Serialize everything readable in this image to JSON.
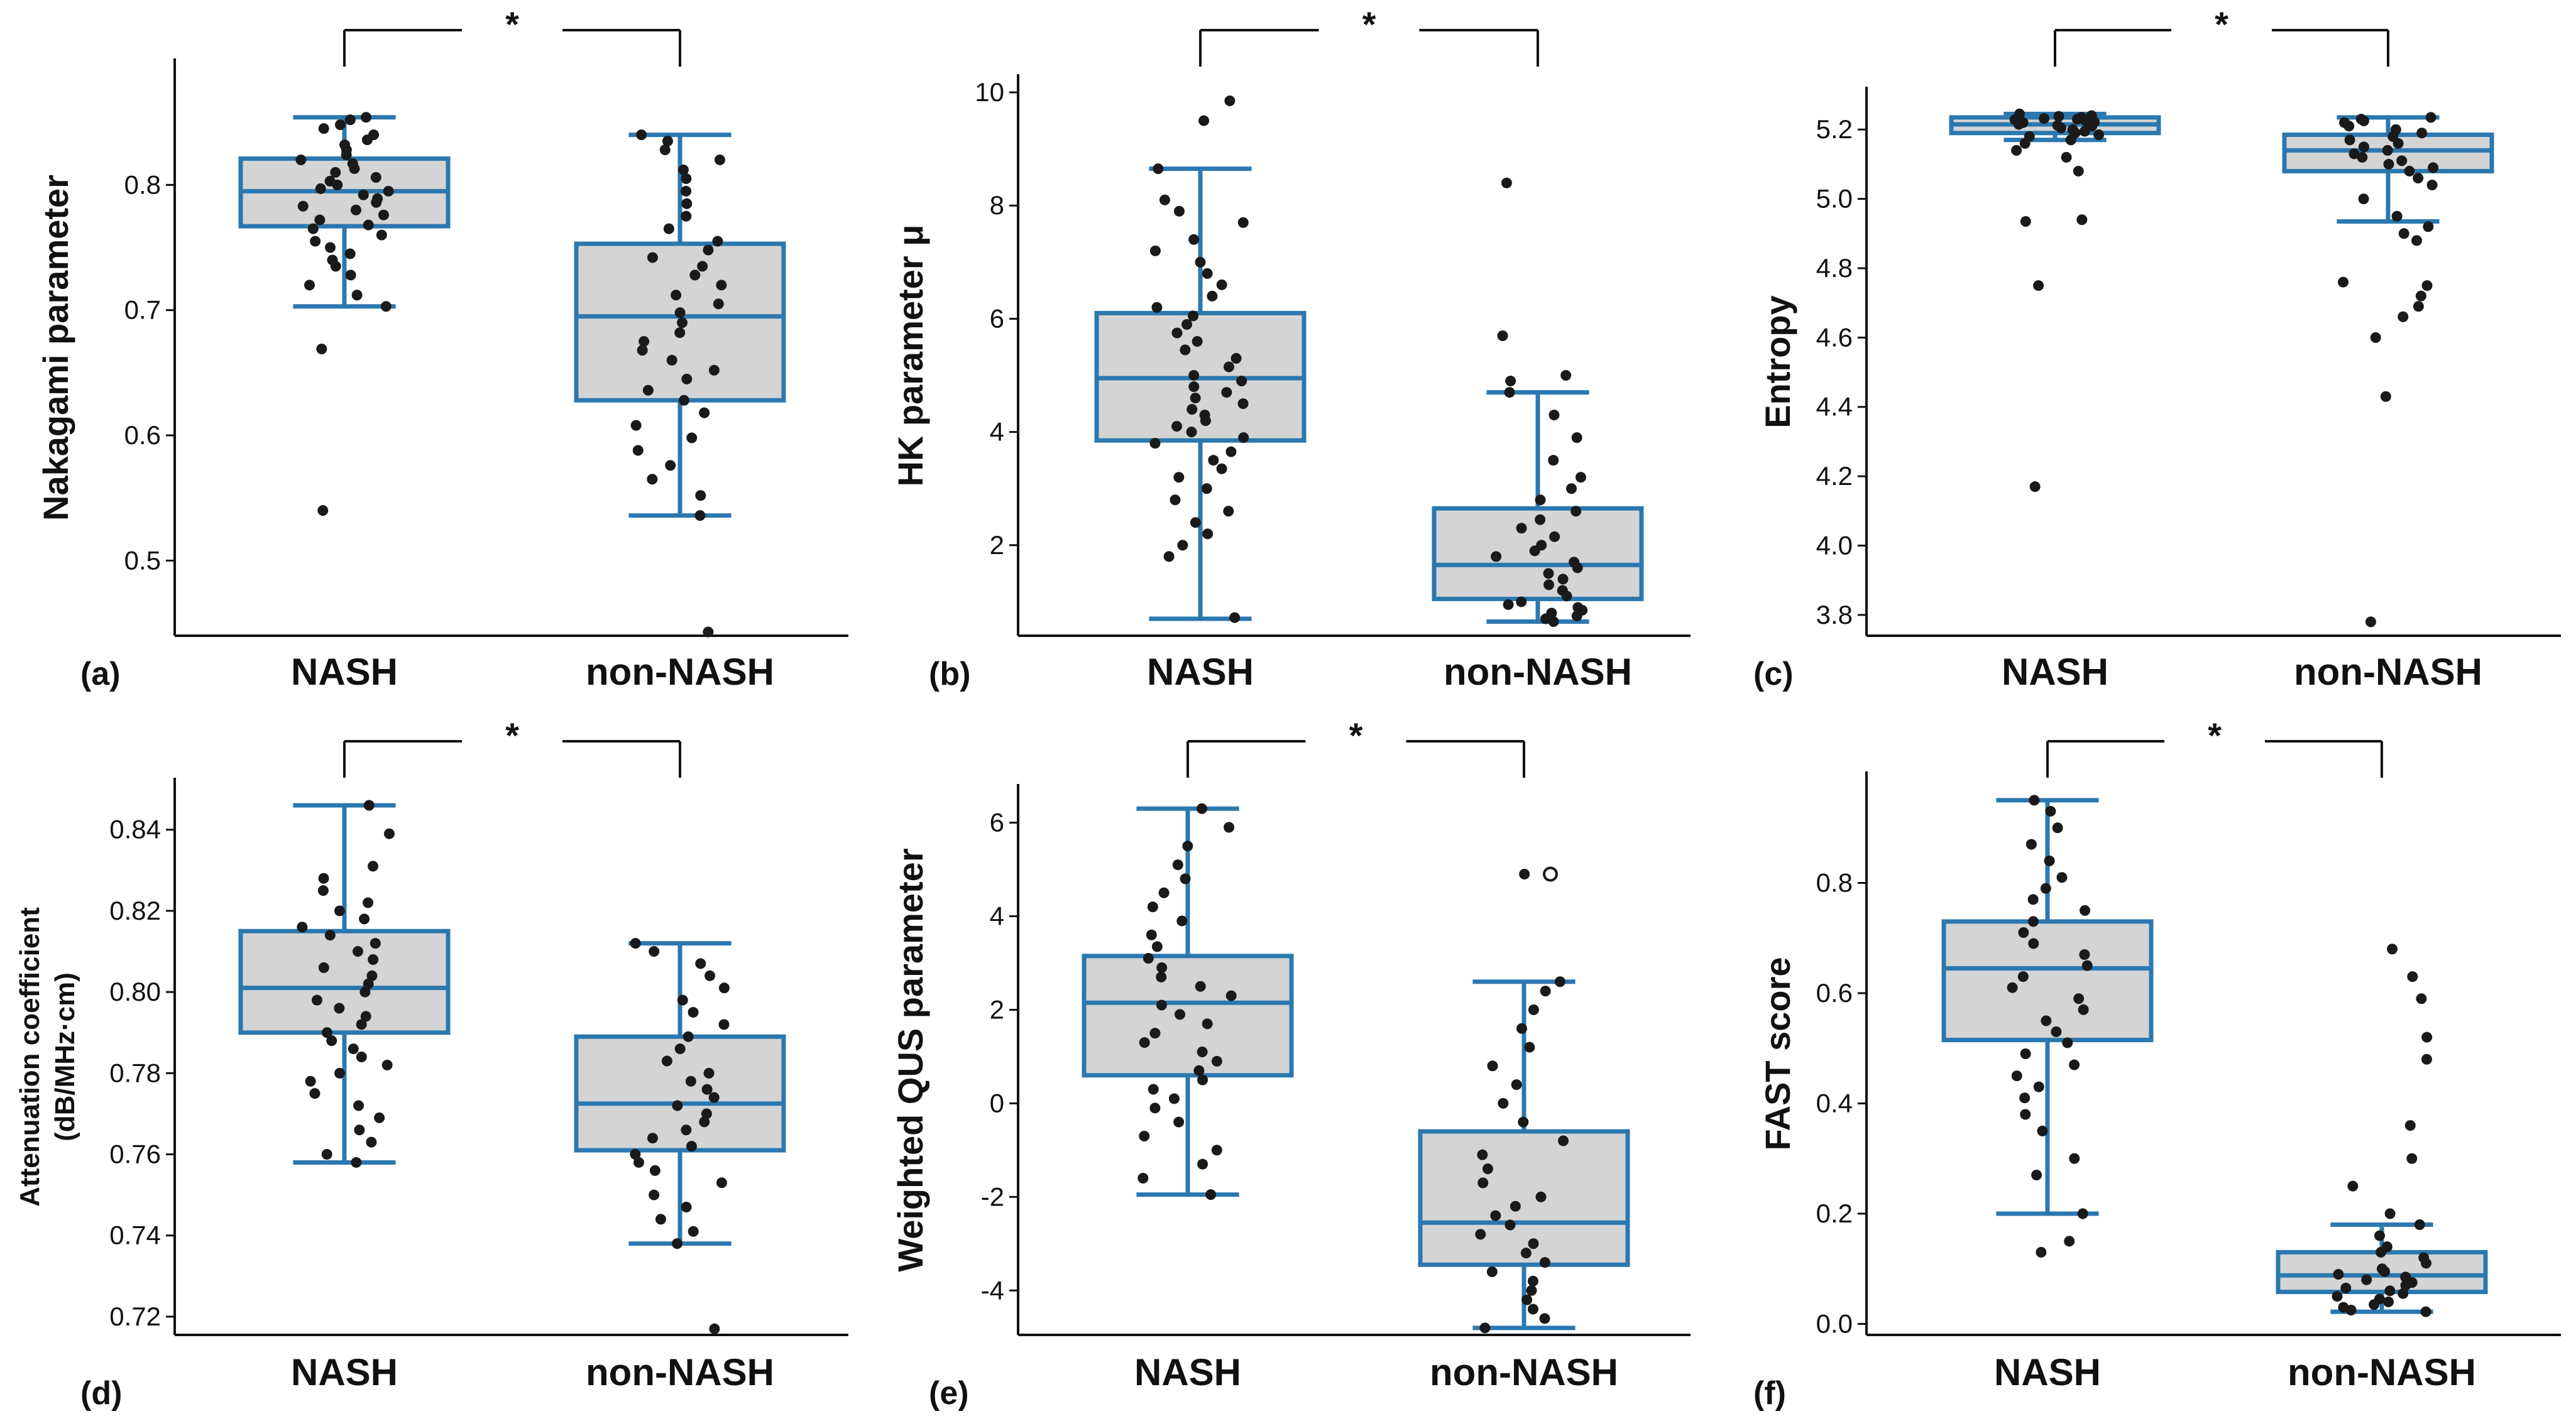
{
  "figure_colors": {
    "box_edge": "#2b78b0",
    "box_fill": "#d4d4d4",
    "point": "#1a1a1a",
    "axis": "#111111"
  },
  "chart_data": [
    {
      "type": "box",
      "panel": "(a)",
      "categories": [
        "NASH",
        "non-NASH"
      ],
      "ylabel": "Nakagami parameter",
      "ylim": [
        0.44,
        0.9
      ],
      "yticks": [
        0.5,
        0.6,
        0.7,
        0.8
      ],
      "tick_decimals": 1,
      "significance": "*",
      "boxes": [
        {
          "name": "NASH",
          "q1": 0.767,
          "median": 0.795,
          "q3": 0.821,
          "whisker_low": 0.703,
          "whisker_high": 0.854
        },
        {
          "name": "non-NASH",
          "q1": 0.628,
          "median": 0.695,
          "q3": 0.753,
          "whisker_low": 0.536,
          "whisker_high": 0.84
        }
      ],
      "points": [
        [
          0.854,
          0.852,
          0.848,
          0.845,
          0.84,
          0.836,
          0.832,
          0.828,
          0.824,
          0.82,
          0.817,
          0.813,
          0.81,
          0.806,
          0.803,
          0.8,
          0.797,
          0.795,
          0.792,
          0.789,
          0.786,
          0.783,
          0.78,
          0.776,
          0.772,
          0.768,
          0.765,
          0.76,
          0.755,
          0.75,
          0.745,
          0.74,
          0.735,
          0.728,
          0.72,
          0.712,
          0.703,
          0.669,
          0.54
        ],
        [
          0.84,
          0.835,
          0.828,
          0.82,
          0.812,
          0.805,
          0.795,
          0.785,
          0.775,
          0.765,
          0.755,
          0.748,
          0.742,
          0.735,
          0.728,
          0.72,
          0.712,
          0.705,
          0.698,
          0.69,
          0.682,
          0.675,
          0.668,
          0.66,
          0.652,
          0.645,
          0.636,
          0.628,
          0.618,
          0.608,
          0.598,
          0.588,
          0.576,
          0.565,
          0.552,
          0.536,
          0.443
        ]
      ]
    },
    {
      "type": "box",
      "panel": "(b)",
      "categories": [
        "NASH",
        "non-NASH"
      ],
      "ylabel": "HK parameter μ",
      "ylim": [
        0.4,
        10.3
      ],
      "yticks": [
        2,
        4,
        6,
        8,
        10
      ],
      "tick_decimals": 0,
      "significance": "*",
      "boxes": [
        {
          "name": "NASH",
          "q1": 3.85,
          "median": 4.95,
          "q3": 6.1,
          "whisker_low": 0.7,
          "whisker_high": 8.65
        },
        {
          "name": "non-NASH",
          "q1": 1.05,
          "median": 1.65,
          "q3": 2.65,
          "whisker_low": 0.65,
          "whisker_high": 4.7
        }
      ],
      "points": [
        [
          9.85,
          9.5,
          8.65,
          8.1,
          7.9,
          7.7,
          7.4,
          7.2,
          7.0,
          6.8,
          6.6,
          6.4,
          6.2,
          6.05,
          5.9,
          5.75,
          5.6,
          5.45,
          5.3,
          5.15,
          5.0,
          4.9,
          4.8,
          4.7,
          4.6,
          4.5,
          4.4,
          4.3,
          4.2,
          4.1,
          4.0,
          3.9,
          3.8,
          3.65,
          3.5,
          3.35,
          3.2,
          3.0,
          2.8,
          2.6,
          2.4,
          2.2,
          2.0,
          1.8,
          0.72
        ],
        [
          8.4,
          5.7,
          5.0,
          4.9,
          4.7,
          4.3,
          3.9,
          3.5,
          3.2,
          3.0,
          2.8,
          2.6,
          2.45,
          2.3,
          2.15,
          2.0,
          1.9,
          1.8,
          1.7,
          1.6,
          1.5,
          1.4,
          1.3,
          1.2,
          1.1,
          1.0,
          0.95,
          0.9,
          0.85,
          0.8,
          0.75,
          0.7,
          0.65
        ]
      ]
    },
    {
      "type": "box",
      "panel": "(c)",
      "categories": [
        "NASH",
        "non-NASH"
      ],
      "ylabel": "Entropy",
      "ylim": [
        3.74,
        5.32
      ],
      "yticks": [
        3.8,
        4.0,
        4.2,
        4.4,
        4.6,
        4.8,
        5.0,
        5.2
      ],
      "tick_decimals": 1,
      "significance": "*",
      "boxes": [
        {
          "name": "NASH",
          "q1": 5.19,
          "median": 5.215,
          "q3": 5.235,
          "whisker_low": 5.17,
          "whisker_high": 5.245
        },
        {
          "name": "non-NASH",
          "q1": 5.08,
          "median": 5.14,
          "q3": 5.185,
          "whisker_low": 4.935,
          "whisker_high": 5.235
        }
      ],
      "points": [
        [
          5.245,
          5.24,
          5.238,
          5.235,
          5.232,
          5.23,
          5.228,
          5.225,
          5.222,
          5.22,
          5.218,
          5.215,
          5.212,
          5.21,
          5.205,
          5.2,
          5.195,
          5.19,
          5.185,
          5.18,
          5.17,
          5.16,
          5.14,
          5.12,
          5.08,
          4.94,
          4.935,
          4.75,
          4.17
        ],
        [
          5.235,
          5.23,
          5.225,
          5.22,
          5.21,
          5.2,
          5.19,
          5.18,
          5.17,
          5.16,
          5.15,
          5.14,
          5.13,
          5.12,
          5.11,
          5.1,
          5.09,
          5.08,
          5.06,
          5.04,
          5.0,
          4.95,
          4.92,
          4.9,
          4.88,
          4.76,
          4.75,
          4.72,
          4.69,
          4.66,
          4.6,
          4.43,
          3.78
        ]
      ]
    },
    {
      "type": "box",
      "panel": "(d)",
      "categories": [
        "NASH",
        "non-NASH"
      ],
      "ylabel": "Attenuation  coefficient",
      "ylabel2": "(dB/MHz·cm)",
      "ylim": [
        0.7155,
        0.8525
      ],
      "yticks": [
        0.72,
        0.74,
        0.76,
        0.78,
        0.8,
        0.82,
        0.84
      ],
      "tick_decimals": 2,
      "significance": "*",
      "boxes": [
        {
          "name": "NASH",
          "q1": 0.79,
          "median": 0.801,
          "q3": 0.815,
          "whisker_low": 0.758,
          "whisker_high": 0.846
        },
        {
          "name": "non-NASH",
          "q1": 0.761,
          "median": 0.7725,
          "q3": 0.789,
          "whisker_low": 0.738,
          "whisker_high": 0.812
        }
      ],
      "points": [
        [
          0.846,
          0.839,
          0.831,
          0.828,
          0.825,
          0.822,
          0.82,
          0.818,
          0.816,
          0.814,
          0.812,
          0.81,
          0.808,
          0.806,
          0.804,
          0.802,
          0.8,
          0.798,
          0.796,
          0.794,
          0.792,
          0.79,
          0.788,
          0.786,
          0.784,
          0.782,
          0.78,
          0.778,
          0.775,
          0.772,
          0.769,
          0.766,
          0.763,
          0.76,
          0.758
        ],
        [
          0.812,
          0.81,
          0.807,
          0.804,
          0.801,
          0.798,
          0.795,
          0.792,
          0.789,
          0.786,
          0.783,
          0.78,
          0.778,
          0.776,
          0.774,
          0.772,
          0.77,
          0.768,
          0.766,
          0.764,
          0.762,
          0.76,
          0.758,
          0.756,
          0.753,
          0.75,
          0.747,
          0.744,
          0.741,
          0.738,
          0.717
        ]
      ]
    },
    {
      "type": "box",
      "panel": "(e)",
      "categories": [
        "NASH",
        "non-NASH"
      ],
      "ylabel": "Weighted QUS parameter",
      "ylim": [
        -4.95,
        6.8
      ],
      "yticks": [
        -4,
        -2,
        0,
        2,
        4,
        6
      ],
      "tick_decimals": 0,
      "significance": "*",
      "boxes": [
        {
          "name": "NASH",
          "q1": 0.6,
          "median": 2.15,
          "q3": 3.15,
          "whisker_low": -1.95,
          "whisker_high": 6.3
        },
        {
          "name": "non-NASH",
          "q1": -3.45,
          "median": -2.55,
          "q3": -0.6,
          "whisker_low": -4.8,
          "whisker_high": 2.6
        }
      ],
      "outliers": [
        null,
        4.9
      ],
      "points": [
        [
          6.3,
          5.9,
          5.5,
          5.1,
          4.8,
          4.5,
          4.2,
          3.9,
          3.6,
          3.35,
          3.1,
          2.9,
          2.7,
          2.5,
          2.3,
          2.1,
          1.9,
          1.7,
          1.5,
          1.3,
          1.1,
          0.9,
          0.7,
          0.5,
          0.3,
          0.1,
          -0.1,
          -0.4,
          -0.7,
          -1.0,
          -1.3,
          -1.6,
          -1.95
        ],
        [
          4.9,
          2.6,
          2.4,
          2.0,
          1.6,
          1.2,
          0.8,
          0.4,
          0.0,
          -0.4,
          -0.8,
          -1.1,
          -1.4,
          -1.7,
          -2.0,
          -2.2,
          -2.4,
          -2.6,
          -2.8,
          -3.0,
          -3.2,
          -3.4,
          -3.6,
          -3.8,
          -4.0,
          -4.2,
          -4.4,
          -4.6,
          -4.8
        ]
      ]
    },
    {
      "type": "box",
      "panel": "(f)",
      "categories": [
        "NASH",
        "non-NASH"
      ],
      "ylabel": "FAST score",
      "ylim": [
        -0.02,
        1.0
      ],
      "yticks": [
        0.0,
        0.2,
        0.4,
        0.6,
        0.8
      ],
      "tick_decimals": 1,
      "significance": "*",
      "boxes": [
        {
          "name": "NASH",
          "q1": 0.515,
          "median": 0.645,
          "q3": 0.73,
          "whisker_low": 0.2,
          "whisker_high": 0.95
        },
        {
          "name": "non-NASH",
          "q1": 0.058,
          "median": 0.088,
          "q3": 0.13,
          "whisker_low": 0.022,
          "whisker_high": 0.18
        }
      ],
      "points": [
        [
          0.95,
          0.93,
          0.9,
          0.87,
          0.84,
          0.81,
          0.79,
          0.77,
          0.75,
          0.73,
          0.71,
          0.69,
          0.67,
          0.65,
          0.63,
          0.61,
          0.59,
          0.57,
          0.55,
          0.53,
          0.51,
          0.49,
          0.47,
          0.45,
          0.43,
          0.41,
          0.38,
          0.35,
          0.3,
          0.27,
          0.2,
          0.15,
          0.13
        ],
        [
          0.68,
          0.63,
          0.59,
          0.52,
          0.48,
          0.36,
          0.3,
          0.25,
          0.2,
          0.18,
          0.16,
          0.14,
          0.13,
          0.12,
          0.11,
          0.1,
          0.095,
          0.09,
          0.085,
          0.08,
          0.075,
          0.07,
          0.065,
          0.06,
          0.055,
          0.05,
          0.045,
          0.04,
          0.035,
          0.03,
          0.025,
          0.022
        ]
      ]
    }
  ]
}
